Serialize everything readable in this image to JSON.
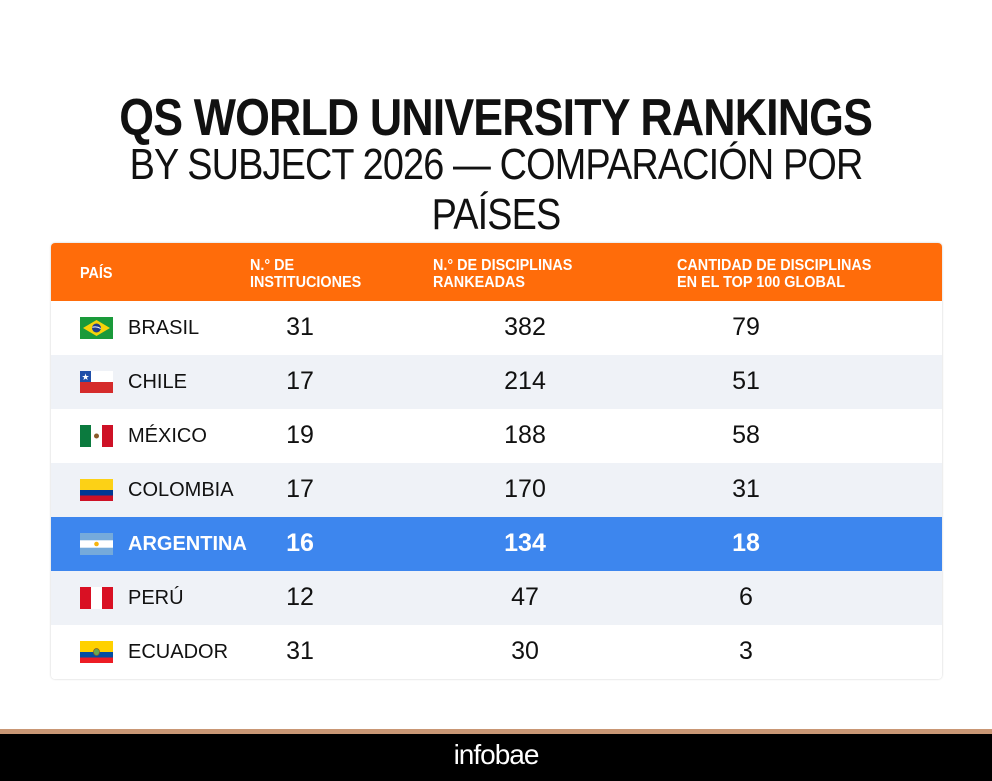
{
  "title_line1": "QS WORLD UNIVERSITY RANKINGS",
  "title_line2": "BY SUBJECT 2026 — COMPARACIÓN POR PAÍSES",
  "footer_brand": "infobae",
  "colors": {
    "header": "#ff6c0a",
    "highlight": "#3d86ee",
    "alt_row": "#eff2f7"
  },
  "chart_data": {
    "type": "table",
    "title": "QS WORLD UNIVERSITY RANKINGS BY SUBJECT 2026 — COMPARACIÓN POR PAÍSES",
    "columns": [
      "PAÍS",
      "N.° DE INSTITUCIONES",
      "N.° DE DISCIPLINAS RANKEADAS",
      "CANTIDAD DE DISCIPLINAS EN EL TOP 100 GLOBAL"
    ],
    "header_lines": [
      [
        "PAÍS"
      ],
      [
        "N.° DE",
        "INSTITUCIONES"
      ],
      [
        "N.° DE DISCIPLINAS",
        "RANKEADAS"
      ],
      [
        "CANTIDAD DE DISCIPLINAS",
        "EN EL TOP 100 GLOBAL"
      ]
    ],
    "rows": [
      {
        "country": "BRASIL",
        "flag": "brazil",
        "institutions": "31",
        "disciplines": "382",
        "top100": "79"
      },
      {
        "country": "CHILE",
        "flag": "chile",
        "institutions": "17",
        "disciplines": "214",
        "top100": "51"
      },
      {
        "country": "MÉXICO",
        "flag": "mexico",
        "institutions": "19",
        "disciplines": "188",
        "top100": "58"
      },
      {
        "country": "COLOMBIA",
        "flag": "colombia",
        "institutions": "17",
        "disciplines": "170",
        "top100": "31"
      },
      {
        "country": "ARGENTINA",
        "flag": "argentina",
        "institutions": "16",
        "disciplines": "134",
        "top100": "18",
        "highlighted": true
      },
      {
        "country": "PERÚ",
        "flag": "peru",
        "institutions": "12",
        "disciplines": "47",
        "top100": "6"
      },
      {
        "country": "ECUADOR",
        "flag": "ecuador",
        "institutions": "31",
        "disciplines": "30",
        "top100": "3"
      }
    ]
  }
}
